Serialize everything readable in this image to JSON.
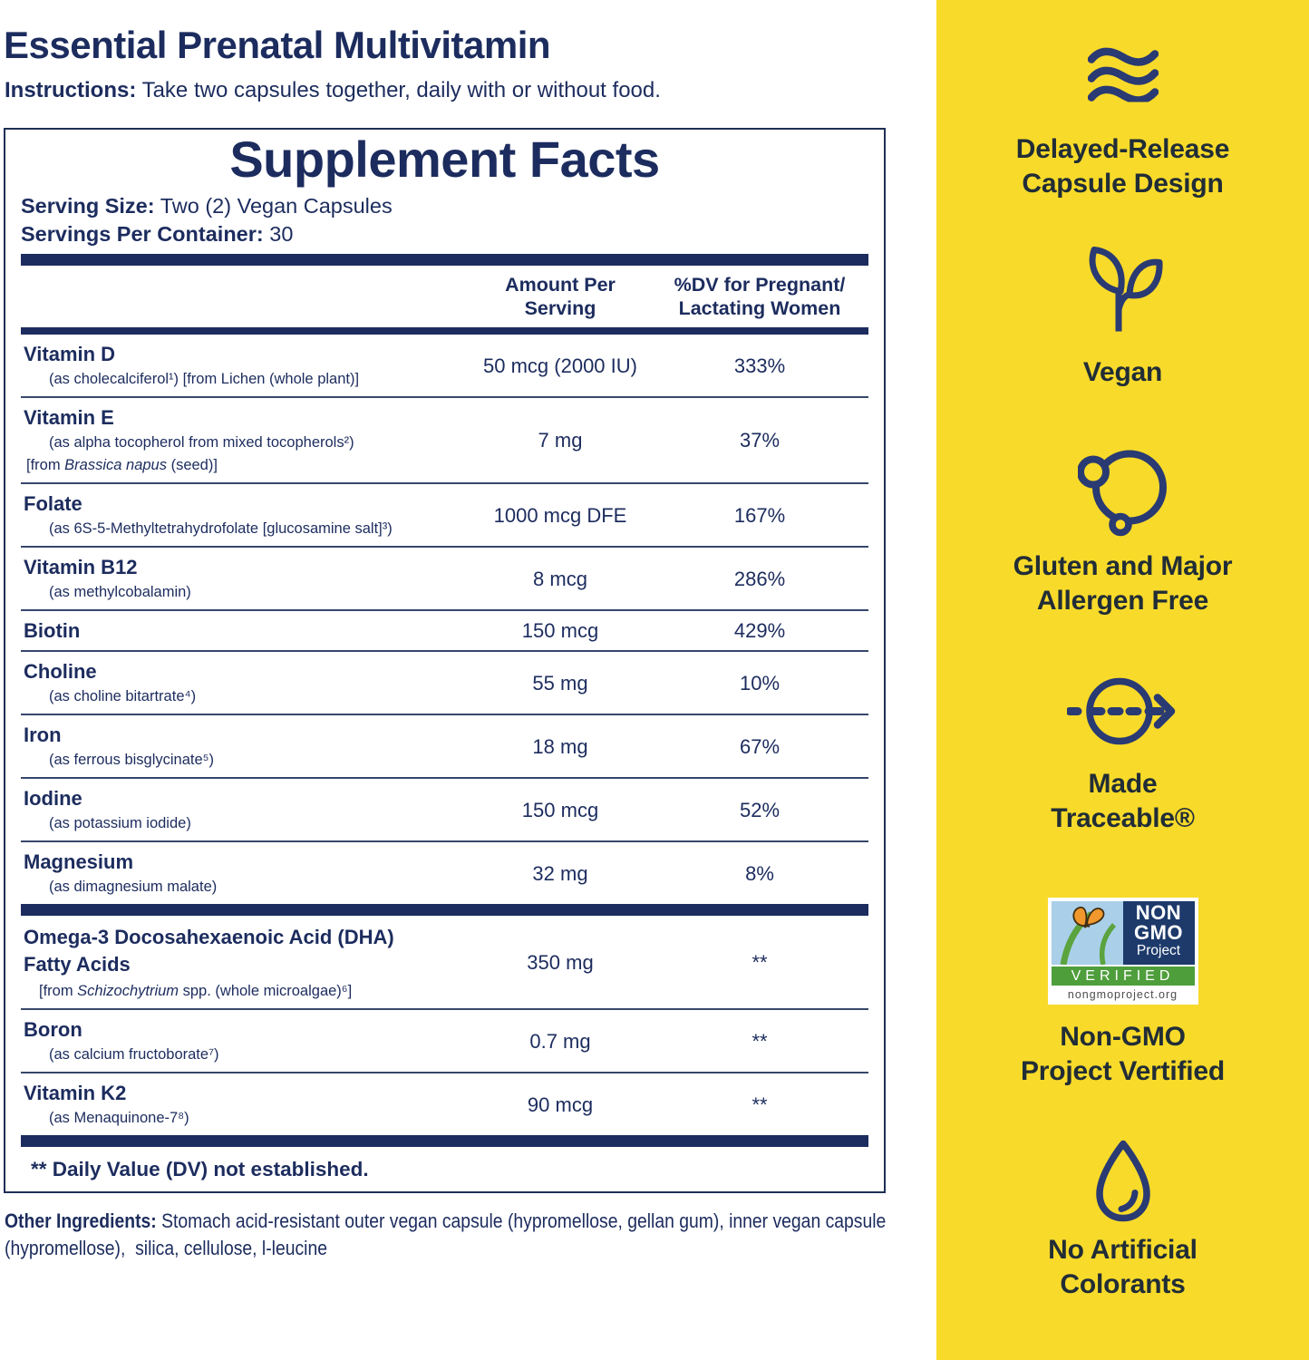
{
  "header": {
    "title": "Essential Prenatal Multivitamin",
    "instructions_label": "Instructions:",
    "instructions_text": "Take two capsules together, daily with or without food."
  },
  "facts": {
    "title": "Supplement Facts",
    "serving_size_label": "Serving Size:",
    "serving_size_value": "Two (2) Vegan Capsules",
    "servings_label": "Servings Per Container:",
    "servings_value": "30",
    "col_amount": "Amount Per\nServing",
    "col_dv": "%DV for Pregnant/\nLactating Women",
    "rows": [
      {
        "name": "Vitamin D",
        "subs": [
          {
            "indent": 31,
            "parts": [
              {
                "t": "(as cholecalciferol¹) [from Lichen (whole plant)]"
              }
            ]
          }
        ],
        "amount": "50 mcg (2000 IU)",
        "dv": "333%"
      },
      {
        "name": "Vitamin E",
        "subs": [
          {
            "indent": 31,
            "parts": [
              {
                "t": "(as alpha tocopherol from mixed tocopherols²)"
              }
            ]
          },
          {
            "indent": 6,
            "parts": [
              {
                "t": "[from "
              },
              {
                "t": "Brassica napus",
                "i": 1
              },
              {
                "t": " (seed)]"
              }
            ]
          }
        ],
        "amount": "7 mg",
        "dv": "37%"
      },
      {
        "name": "Folate",
        "subs": [
          {
            "indent": 31,
            "parts": [
              {
                "t": "(as 6S-5-Methyltetrahydrofolate [glucosamine salt]³)"
              }
            ]
          }
        ],
        "amount": "1000 mcg DFE",
        "dv": "167%"
      },
      {
        "name": "Vitamin B12",
        "subs": [
          {
            "indent": 31,
            "parts": [
              {
                "t": "(as methylcobalamin)"
              }
            ]
          }
        ],
        "amount": "8 mcg",
        "dv": "286%"
      },
      {
        "name": "Biotin",
        "subs": [],
        "amount": "150 mcg",
        "dv": "429%"
      },
      {
        "name": "Choline",
        "subs": [
          {
            "indent": 31,
            "parts": [
              {
                "t": "(as choline bitartrate⁴)"
              }
            ]
          }
        ],
        "amount": "55 mg",
        "dv": "10%"
      },
      {
        "name": "Iron",
        "subs": [
          {
            "indent": 31,
            "parts": [
              {
                "t": "(as ferrous bisglycinate⁵)"
              }
            ]
          }
        ],
        "amount": "18 mg",
        "dv": "67%"
      },
      {
        "name": "Iodine",
        "subs": [
          {
            "indent": 31,
            "parts": [
              {
                "t": "(as potassium iodide)"
              }
            ]
          }
        ],
        "amount": "150 mcg",
        "dv": "52%"
      },
      {
        "name": "Magnesium",
        "subs": [
          {
            "indent": 31,
            "parts": [
              {
                "t": "(as dimagnesium malate)"
              }
            ]
          }
        ],
        "amount": "32 mg",
        "dv": "8%"
      },
      {
        "divider": true
      },
      {
        "name": "Omega-3 Docosahexaenoic Acid (DHA)\nFatty Acids",
        "subs": [
          {
            "indent": 20,
            "parts": [
              {
                "t": "[from "
              },
              {
                "t": "Schizochytrium",
                "i": 1
              },
              {
                "t": " spp. (whole microalgae)⁶]"
              }
            ]
          }
        ],
        "amount": "350 mg",
        "dv": "**"
      },
      {
        "name": "Boron",
        "subs": [
          {
            "indent": 31,
            "parts": [
              {
                "t": "(as calcium fructoborate⁷)"
              }
            ]
          }
        ],
        "amount": "0.7 mg",
        "dv": "**"
      },
      {
        "name": "Vitamin K2",
        "subs": [
          {
            "indent": 31,
            "parts": [
              {
                "t": "(as Menaquinone-7⁸)"
              }
            ]
          }
        ],
        "amount": "90 mcg",
        "dv": "**"
      }
    ],
    "footnote": "** Daily Value (DV) not established."
  },
  "other_ingredients": {
    "label": "Other Ingredients:",
    "text": "Stomach acid-resistant outer vegan capsule (hypromellose, gellan gum), inner vegan capsule\n(hypromellose),  silica, cellulose, l-leucine"
  },
  "sidebar": {
    "items": [
      {
        "icon": "waves-icon",
        "label": "Delayed-Release\nCapsule Design"
      },
      {
        "icon": "sprout-icon",
        "label": "Vegan"
      },
      {
        "icon": "molecule-circles-icon",
        "label": "Gluten and Major\nAllergen Free"
      },
      {
        "icon": "traceable-arrow-icon",
        "label": "Made\nTraceable®"
      },
      {
        "icon": "non-gmo-project-verified-logo",
        "label": "Non-GMO\nProject Vertified"
      },
      {
        "icon": "water-drop-icon",
        "label": "No Artificial\nColorants"
      }
    ],
    "nongmo_logo": {
      "line1": "NON",
      "line2": "GMO",
      "line3": "Project",
      "verified": "VERIFIED",
      "url": "nongmoproject.org"
    }
  },
  "colors": {
    "navy": "#1c2c5e",
    "yellow": "#f8da2a",
    "sidebar_text": "#212d36",
    "logo_green": "#4f9e3c",
    "logo_sky": "#aacfe8",
    "logo_navy": "#1d3a6b",
    "butterfly_orange": "#f0982d"
  }
}
